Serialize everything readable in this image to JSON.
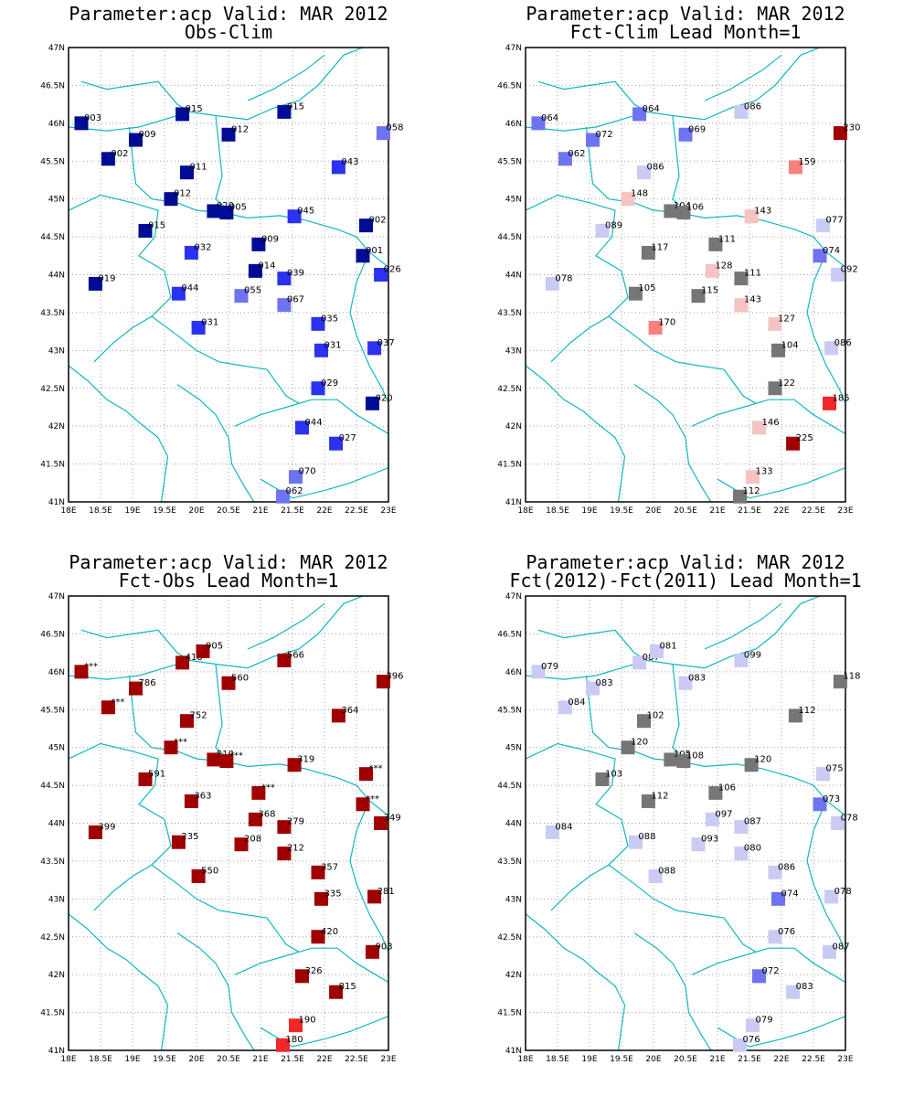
{
  "colors": {
    "coast": "#10b8c0",
    "frame": "#000000",
    "grid": "#a0a0a0",
    "darkblue": "#000c96",
    "blue": "#2b32f0",
    "midblue": "#6e73f0",
    "lightblue": "#c9cbf5",
    "gray": "#767676",
    "lightpink": "#f6c3c3",
    "pink": "#fa8080",
    "red": "#f02828",
    "darkred": "#a00000"
  },
  "axes": {
    "lon_ticks": [
      "18E",
      "18.5E",
      "19E",
      "19.5E",
      "20E",
      "20.5E",
      "21E",
      "21.5E",
      "22E",
      "22.5E",
      "23E"
    ],
    "lat_ticks": [
      "41N",
      "41.5N",
      "42N",
      "42.5N",
      "43N",
      "43.5N",
      "44N",
      "44.5N",
      "45N",
      "45.5N",
      "46N",
      "46.5N",
      "47N"
    ],
    "lon_range": [
      18,
      23
    ],
    "lat_range": [
      41,
      47
    ]
  },
  "panels": [
    {
      "title_line1": "Parameter:acp Valid: MAR 2012",
      "title_line2": "Obs-Clim",
      "stations": [
        {
          "lon": 18.2,
          "lat": 46.0,
          "label": "003",
          "color": "darkblue"
        },
        {
          "lon": 18.62,
          "lat": 45.53,
          "label": "002",
          "color": "darkblue"
        },
        {
          "lon": 19.05,
          "lat": 45.78,
          "label": "009",
          "color": "darkblue"
        },
        {
          "lon": 19.78,
          "lat": 46.12,
          "label": "015",
          "color": "darkblue"
        },
        {
          "lon": 20.5,
          "lat": 45.85,
          "label": "012",
          "color": "darkblue"
        },
        {
          "lon": 21.37,
          "lat": 46.15,
          "label": "015",
          "color": "darkblue"
        },
        {
          "lon": 22.92,
          "lat": 45.87,
          "label": "058",
          "color": "midblue"
        },
        {
          "lon": 22.22,
          "lat": 45.42,
          "label": "043",
          "color": "blue"
        },
        {
          "lon": 19.85,
          "lat": 45.35,
          "label": "011",
          "color": "darkblue"
        },
        {
          "lon": 19.6,
          "lat": 45.0,
          "label": "012",
          "color": "darkblue"
        },
        {
          "lon": 20.27,
          "lat": 44.84,
          "label": "020",
          "color": "darkblue"
        },
        {
          "lon": 20.47,
          "lat": 44.82,
          "label": "005",
          "color": "darkblue"
        },
        {
          "lon": 21.53,
          "lat": 44.77,
          "label": "045",
          "color": "blue"
        },
        {
          "lon": 22.65,
          "lat": 44.65,
          "label": "002",
          "color": "darkblue"
        },
        {
          "lon": 19.2,
          "lat": 44.58,
          "label": "015",
          "color": "darkblue"
        },
        {
          "lon": 19.92,
          "lat": 44.29,
          "label": "032",
          "color": "blue"
        },
        {
          "lon": 20.97,
          "lat": 44.4,
          "label": "009",
          "color": "darkblue"
        },
        {
          "lon": 22.6,
          "lat": 44.25,
          "label": "001",
          "color": "darkblue"
        },
        {
          "lon": 20.92,
          "lat": 44.05,
          "label": "014",
          "color": "darkblue"
        },
        {
          "lon": 21.37,
          "lat": 43.95,
          "label": "039",
          "color": "blue"
        },
        {
          "lon": 22.88,
          "lat": 44.0,
          "label": "026",
          "color": "blue"
        },
        {
          "lon": 18.42,
          "lat": 43.88,
          "label": "019",
          "color": "darkblue"
        },
        {
          "lon": 19.72,
          "lat": 43.75,
          "label": "044",
          "color": "blue"
        },
        {
          "lon": 20.7,
          "lat": 43.72,
          "label": "055",
          "color": "midblue"
        },
        {
          "lon": 21.37,
          "lat": 43.6,
          "label": "067",
          "color": "midblue"
        },
        {
          "lon": 20.03,
          "lat": 43.3,
          "label": "031",
          "color": "blue"
        },
        {
          "lon": 21.9,
          "lat": 43.35,
          "label": "035",
          "color": "blue"
        },
        {
          "lon": 21.95,
          "lat": 43.0,
          "label": "031",
          "color": "blue"
        },
        {
          "lon": 22.78,
          "lat": 43.03,
          "label": "037",
          "color": "blue"
        },
        {
          "lon": 21.9,
          "lat": 42.5,
          "label": "029",
          "color": "blue"
        },
        {
          "lon": 22.75,
          "lat": 42.3,
          "label": "020",
          "color": "darkblue"
        },
        {
          "lon": 21.65,
          "lat": 41.98,
          "label": "044",
          "color": "blue"
        },
        {
          "lon": 22.18,
          "lat": 41.77,
          "label": "027",
          "color": "blue"
        },
        {
          "lon": 21.55,
          "lat": 41.33,
          "label": "070",
          "color": "midblue"
        },
        {
          "lon": 21.35,
          "lat": 41.07,
          "label": "062",
          "color": "midblue"
        }
      ]
    },
    {
      "title_line1": "Parameter:acp Valid: MAR 2012",
      "title_line2": "Fct-Clim Lead Month=1",
      "stations": [
        {
          "lon": 18.2,
          "lat": 46.0,
          "label": "064",
          "color": "midblue"
        },
        {
          "lon": 18.62,
          "lat": 45.53,
          "label": "062",
          "color": "midblue"
        },
        {
          "lon": 19.05,
          "lat": 45.78,
          "label": "072",
          "color": "midblue"
        },
        {
          "lon": 19.78,
          "lat": 46.12,
          "label": "064",
          "color": "midblue"
        },
        {
          "lon": 20.5,
          "lat": 45.85,
          "label": "069",
          "color": "midblue"
        },
        {
          "lon": 21.37,
          "lat": 46.15,
          "label": "086",
          "color": "lightblue"
        },
        {
          "lon": 22.92,
          "lat": 45.87,
          "label": "230",
          "color": "darkred"
        },
        {
          "lon": 22.22,
          "lat": 45.42,
          "label": "159",
          "color": "pink"
        },
        {
          "lon": 19.85,
          "lat": 45.35,
          "label": "086",
          "color": "lightblue"
        },
        {
          "lon": 19.6,
          "lat": 45.0,
          "label": "148",
          "color": "lightpink"
        },
        {
          "lon": 20.27,
          "lat": 44.84,
          "label": "104",
          "color": "gray"
        },
        {
          "lon": 20.47,
          "lat": 44.82,
          "label": "106",
          "color": "gray"
        },
        {
          "lon": 21.53,
          "lat": 44.77,
          "label": "143",
          "color": "lightpink"
        },
        {
          "lon": 22.65,
          "lat": 44.65,
          "label": "077",
          "color": "lightblue"
        },
        {
          "lon": 19.2,
          "lat": 44.58,
          "label": "089",
          "color": "lightblue"
        },
        {
          "lon": 19.92,
          "lat": 44.29,
          "label": "117",
          "color": "gray"
        },
        {
          "lon": 20.97,
          "lat": 44.4,
          "label": "111",
          "color": "gray"
        },
        {
          "lon": 22.6,
          "lat": 44.25,
          "label": "074",
          "color": "midblue"
        },
        {
          "lon": 20.92,
          "lat": 44.05,
          "label": "128",
          "color": "lightpink"
        },
        {
          "lon": 21.37,
          "lat": 43.95,
          "label": "111",
          "color": "gray"
        },
        {
          "lon": 22.88,
          "lat": 44.0,
          "label": "092",
          "color": "lightblue"
        },
        {
          "lon": 18.42,
          "lat": 43.88,
          "label": "078",
          "color": "lightblue"
        },
        {
          "lon": 19.72,
          "lat": 43.75,
          "label": "105",
          "color": "gray"
        },
        {
          "lon": 20.7,
          "lat": 43.72,
          "label": "115",
          "color": "gray"
        },
        {
          "lon": 21.37,
          "lat": 43.6,
          "label": "143",
          "color": "lightpink"
        },
        {
          "lon": 20.03,
          "lat": 43.3,
          "label": "170",
          "color": "pink"
        },
        {
          "lon": 21.9,
          "lat": 43.35,
          "label": "127",
          "color": "lightpink"
        },
        {
          "lon": 21.95,
          "lat": 43.0,
          "label": "104",
          "color": "gray"
        },
        {
          "lon": 22.78,
          "lat": 43.03,
          "label": "086",
          "color": "lightblue"
        },
        {
          "lon": 21.9,
          "lat": 42.5,
          "label": "122",
          "color": "gray"
        },
        {
          "lon": 22.75,
          "lat": 42.3,
          "label": "185",
          "color": "red"
        },
        {
          "lon": 21.65,
          "lat": 41.98,
          "label": "146",
          "color": "lightpink"
        },
        {
          "lon": 22.18,
          "lat": 41.77,
          "label": "225",
          "color": "darkred"
        },
        {
          "lon": 21.55,
          "lat": 41.33,
          "label": "133",
          "color": "lightpink"
        },
        {
          "lon": 21.35,
          "lat": 41.07,
          "label": "112",
          "color": "gray"
        }
      ]
    },
    {
      "title_line1": "Parameter:acp Valid: MAR 2012",
      "title_line2": "Fct-Obs Lead Month=1",
      "stations": [
        {
          "lon": 18.2,
          "lat": 46.0,
          "label": "***",
          "color": "darkred"
        },
        {
          "lon": 18.62,
          "lat": 45.53,
          "label": "***",
          "color": "darkred"
        },
        {
          "lon": 19.05,
          "lat": 45.78,
          "label": "786",
          "color": "darkred"
        },
        {
          "lon": 19.78,
          "lat": 46.12,
          "label": "418",
          "color": "darkred"
        },
        {
          "lon": 20.1,
          "lat": 46.27,
          "label": "905",
          "color": "darkred"
        },
        {
          "lon": 20.5,
          "lat": 45.85,
          "label": "560",
          "color": "darkred"
        },
        {
          "lon": 21.37,
          "lat": 46.15,
          "label": "566",
          "color": "darkred"
        },
        {
          "lon": 22.92,
          "lat": 45.87,
          "label": "396",
          "color": "darkred"
        },
        {
          "lon": 22.22,
          "lat": 45.42,
          "label": "364",
          "color": "darkred"
        },
        {
          "lon": 19.85,
          "lat": 45.35,
          "label": "752",
          "color": "darkred"
        },
        {
          "lon": 19.6,
          "lat": 45.0,
          "label": "***",
          "color": "darkred"
        },
        {
          "lon": 20.27,
          "lat": 44.84,
          "label": "510",
          "color": "darkred"
        },
        {
          "lon": 20.47,
          "lat": 44.82,
          "label": "***",
          "color": "darkred"
        },
        {
          "lon": 21.53,
          "lat": 44.77,
          "label": "319",
          "color": "darkred"
        },
        {
          "lon": 22.65,
          "lat": 44.65,
          "label": "***",
          "color": "darkred"
        },
        {
          "lon": 19.2,
          "lat": 44.58,
          "label": "591",
          "color": "darkred"
        },
        {
          "lon": 19.92,
          "lat": 44.29,
          "label": "363",
          "color": "darkred"
        },
        {
          "lon": 20.97,
          "lat": 44.4,
          "label": "***",
          "color": "darkred"
        },
        {
          "lon": 22.6,
          "lat": 44.25,
          "label": "***",
          "color": "darkred"
        },
        {
          "lon": 20.92,
          "lat": 44.05,
          "label": "368",
          "color": "darkred"
        },
        {
          "lon": 21.37,
          "lat": 43.95,
          "label": "279",
          "color": "darkred"
        },
        {
          "lon": 22.88,
          "lat": 44.0,
          "label": "349",
          "color": "darkred"
        },
        {
          "lon": 18.42,
          "lat": 43.88,
          "label": "399",
          "color": "darkred"
        },
        {
          "lon": 19.72,
          "lat": 43.75,
          "label": "235",
          "color": "darkred"
        },
        {
          "lon": 20.7,
          "lat": 43.72,
          "label": "208",
          "color": "darkred"
        },
        {
          "lon": 21.37,
          "lat": 43.6,
          "label": "212",
          "color": "darkred"
        },
        {
          "lon": 20.03,
          "lat": 43.3,
          "label": "550",
          "color": "darkred"
        },
        {
          "lon": 21.9,
          "lat": 43.35,
          "label": "357",
          "color": "darkred"
        },
        {
          "lon": 21.95,
          "lat": 43.0,
          "label": "335",
          "color": "darkred"
        },
        {
          "lon": 22.78,
          "lat": 43.03,
          "label": "281",
          "color": "darkred"
        },
        {
          "lon": 21.9,
          "lat": 42.5,
          "label": "420",
          "color": "darkred"
        },
        {
          "lon": 22.75,
          "lat": 42.3,
          "label": "903",
          "color": "darkred"
        },
        {
          "lon": 21.65,
          "lat": 41.98,
          "label": "326",
          "color": "darkred"
        },
        {
          "lon": 22.18,
          "lat": 41.77,
          "label": "815",
          "color": "darkred"
        },
        {
          "lon": 21.55,
          "lat": 41.33,
          "label": "190",
          "color": "red"
        },
        {
          "lon": 21.35,
          "lat": 41.07,
          "label": "180",
          "color": "red"
        }
      ]
    },
    {
      "title_line1": "Parameter:acp Valid: MAR 2012",
      "title_line2": "Fct(2012)-Fct(2011) Lead Month=1",
      "stations": [
        {
          "lon": 18.2,
          "lat": 46.0,
          "label": "079",
          "color": "lightblue"
        },
        {
          "lon": 18.62,
          "lat": 45.53,
          "label": "084",
          "color": "lightblue"
        },
        {
          "lon": 19.05,
          "lat": 45.78,
          "label": "083",
          "color": "lightblue"
        },
        {
          "lon": 19.78,
          "lat": 46.12,
          "label": "087",
          "color": "lightblue"
        },
        {
          "lon": 20.05,
          "lat": 46.27,
          "label": "081",
          "color": "lightblue"
        },
        {
          "lon": 20.5,
          "lat": 45.85,
          "label": "083",
          "color": "lightblue"
        },
        {
          "lon": 21.37,
          "lat": 46.15,
          "label": "099",
          "color": "lightblue"
        },
        {
          "lon": 22.92,
          "lat": 45.87,
          "label": "118",
          "color": "gray"
        },
        {
          "lon": 22.22,
          "lat": 45.42,
          "label": "112",
          "color": "gray"
        },
        {
          "lon": 19.85,
          "lat": 45.35,
          "label": "102",
          "color": "gray"
        },
        {
          "lon": 19.6,
          "lat": 45.0,
          "label": "120",
          "color": "gray"
        },
        {
          "lon": 20.27,
          "lat": 44.84,
          "label": "105",
          "color": "gray"
        },
        {
          "lon": 20.47,
          "lat": 44.82,
          "label": "108",
          "color": "gray"
        },
        {
          "lon": 21.53,
          "lat": 44.77,
          "label": "120",
          "color": "gray"
        },
        {
          "lon": 22.65,
          "lat": 44.65,
          "label": "075",
          "color": "lightblue"
        },
        {
          "lon": 19.2,
          "lat": 44.58,
          "label": "103",
          "color": "gray"
        },
        {
          "lon": 19.92,
          "lat": 44.29,
          "label": "112",
          "color": "gray"
        },
        {
          "lon": 20.97,
          "lat": 44.4,
          "label": "106",
          "color": "gray"
        },
        {
          "lon": 22.6,
          "lat": 44.25,
          "label": "073",
          "color": "midblue"
        },
        {
          "lon": 20.92,
          "lat": 44.05,
          "label": "097",
          "color": "lightblue"
        },
        {
          "lon": 21.37,
          "lat": 43.95,
          "label": "087",
          "color": "lightblue"
        },
        {
          "lon": 22.88,
          "lat": 44.0,
          "label": "078",
          "color": "lightblue"
        },
        {
          "lon": 18.42,
          "lat": 43.88,
          "label": "084",
          "color": "lightblue"
        },
        {
          "lon": 19.72,
          "lat": 43.75,
          "label": "088",
          "color": "lightblue"
        },
        {
          "lon": 20.7,
          "lat": 43.72,
          "label": "093",
          "color": "lightblue"
        },
        {
          "lon": 21.37,
          "lat": 43.6,
          "label": "080",
          "color": "lightblue"
        },
        {
          "lon": 20.03,
          "lat": 43.3,
          "label": "088",
          "color": "lightblue"
        },
        {
          "lon": 21.9,
          "lat": 43.35,
          "label": "086",
          "color": "lightblue"
        },
        {
          "lon": 21.95,
          "lat": 43.0,
          "label": "074",
          "color": "midblue"
        },
        {
          "lon": 22.78,
          "lat": 43.03,
          "label": "078",
          "color": "lightblue"
        },
        {
          "lon": 21.9,
          "lat": 42.5,
          "label": "076",
          "color": "lightblue"
        },
        {
          "lon": 22.75,
          "lat": 42.3,
          "label": "087",
          "color": "lightblue"
        },
        {
          "lon": 21.65,
          "lat": 41.98,
          "label": "072",
          "color": "midblue"
        },
        {
          "lon": 22.18,
          "lat": 41.77,
          "label": "083",
          "color": "lightblue"
        },
        {
          "lon": 21.55,
          "lat": 41.33,
          "label": "079",
          "color": "lightblue"
        },
        {
          "lon": 21.35,
          "lat": 41.07,
          "label": "076",
          "color": "lightblue"
        }
      ]
    }
  ]
}
